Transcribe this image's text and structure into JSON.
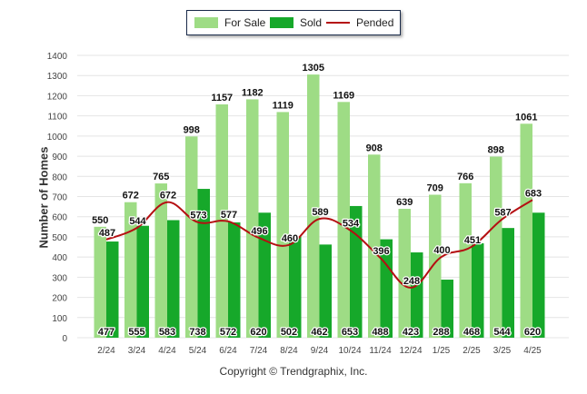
{
  "chart_data": {
    "type": "bar",
    "categories": [
      "2/24",
      "3/24",
      "4/24",
      "5/24",
      "6/24",
      "7/24",
      "8/24",
      "9/24",
      "10/24",
      "11/24",
      "12/24",
      "1/25",
      "2/25",
      "3/25",
      "4/25"
    ],
    "series": [
      {
        "name": "For Sale",
        "type": "bar",
        "color": "#9edc85",
        "values": [
          550,
          672,
          765,
          998,
          1157,
          1182,
          1119,
          1305,
          1169,
          908,
          639,
          709,
          766,
          898,
          1061
        ]
      },
      {
        "name": "Sold",
        "type": "bar",
        "color": "#16a82a",
        "values": [
          477,
          555,
          583,
          738,
          572,
          620,
          502,
          462,
          653,
          488,
          423,
          288,
          468,
          544,
          620
        ]
      },
      {
        "name": "Pended",
        "type": "line",
        "color": "#b50f12",
        "values": [
          487,
          544,
          672,
          573,
          577,
          496,
          460,
          589,
          534,
          396,
          248,
          400,
          451,
          587,
          683
        ]
      }
    ],
    "ylabel": "Number of Homes",
    "ylim": [
      0,
      1400
    ],
    "yticks": [
      0,
      100,
      200,
      300,
      400,
      500,
      600,
      700,
      800,
      900,
      1000,
      1100,
      1200,
      1300,
      1400
    ],
    "grid": true,
    "legend": "top-center"
  },
  "footer": {
    "copyright": "Copyright © Trendgraphix, Inc."
  }
}
